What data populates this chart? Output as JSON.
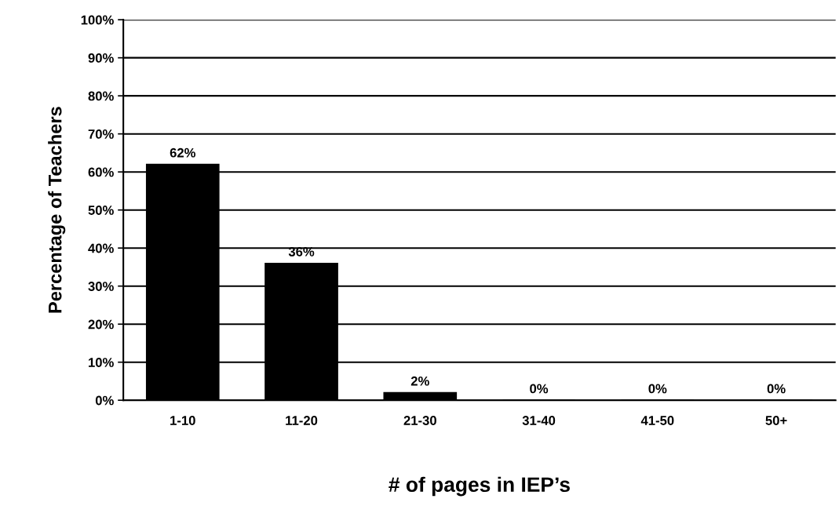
{
  "chart_data": {
    "type": "bar",
    "xlabel": "# of pages in IEP’s",
    "ylabel": "Percentage of Teachers",
    "categories": [
      "1-10",
      "11-20",
      "21-30",
      "31-40",
      "41-50",
      "50+"
    ],
    "values": [
      62,
      36,
      2,
      0,
      0,
      0
    ],
    "value_labels": [
      "62%",
      "36%",
      "2%",
      "0%",
      "0%",
      "0%"
    ],
    "color": "#000000",
    "ylim": [
      0,
      100
    ],
    "yticks": [
      {
        "value": 0,
        "label": "0%"
      },
      {
        "value": 10,
        "label": "10%"
      },
      {
        "value": 20,
        "label": "20%"
      },
      {
        "value": 30,
        "label": "30%"
      },
      {
        "value": 40,
        "label": "40%"
      },
      {
        "value": 50,
        "label": "50%"
      },
      {
        "value": 60,
        "label": "60%"
      },
      {
        "value": 70,
        "label": "70%"
      },
      {
        "value": 80,
        "label": "80%"
      },
      {
        "value": 90,
        "label": "90%"
      },
      {
        "value": 100,
        "label": "100%"
      }
    ],
    "grid": "y",
    "legend": false
  }
}
